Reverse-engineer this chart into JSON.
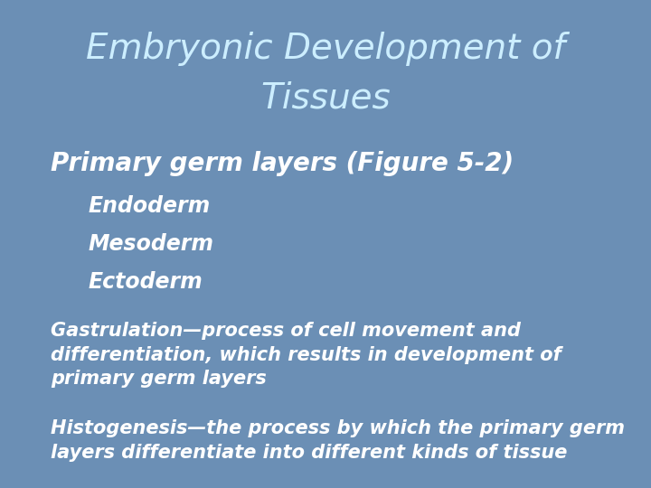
{
  "title_line1": "Embryonic Development of",
  "title_line2": "Tissues",
  "title_color": "#cceeff",
  "title_fontsize": 28,
  "background_color": "#6b8fb5",
  "bullet_color": "#4db8e8",
  "sub_bullet_color": "#f0a500",
  "text_color": "#ffffff",
  "bullet1": "Primary germ layers (Figure 5-2)",
  "bullet1_fontsize": 20,
  "sub_bullets": [
    "Endoderm",
    "Mesoderm",
    "Ectoderm"
  ],
  "sub_bullet_fontsize": 17,
  "bullet2": "Gastrulation—process of cell movement and\ndifferentiation, which results in development of\nprimary germ layers",
  "bullet3": "Histogenesis—the process by which the primary germ\nlayers differentiate into different kinds of tissue",
  "body_fontsize": 15
}
